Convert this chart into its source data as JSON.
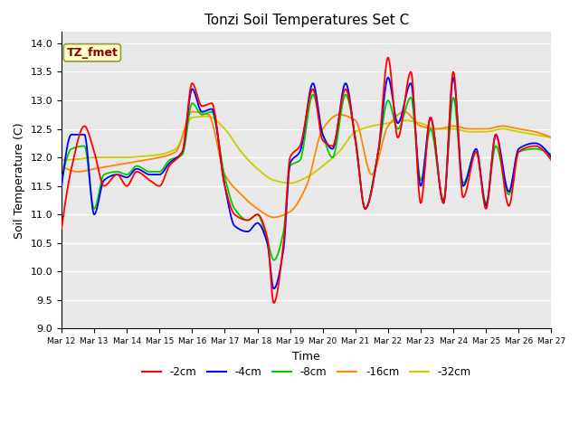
{
  "title": "Tonzi Soil Temperatures Set C",
  "xlabel": "Time",
  "ylabel": "Soil Temperature (C)",
  "ylim": [
    9.0,
    14.2
  ],
  "yticks": [
    9.0,
    9.5,
    10.0,
    10.5,
    11.0,
    11.5,
    12.0,
    12.5,
    13.0,
    13.5,
    14.0
  ],
  "bg_color": "#e8e8e8",
  "annotation_text": "TZ_fmet",
  "annotation_color": "#8b0000",
  "annotation_bg": "#ffffcc",
  "series_colors": {
    "-2cm": "#ff0000",
    "-4cm": "#0000ff",
    "-8cm": "#00cc00",
    "-16cm": "#ff8800",
    "-32cm": "#cccc00"
  },
  "x_tick_labels": [
    "Mar 12",
    "Mar 13",
    "Mar 14",
    "Mar 15",
    "Mar 16",
    "Mar 17",
    "Mar 18",
    "Mar 19",
    "Mar 20",
    "Mar 21",
    "Mar 22",
    "Mar 23",
    "Mar 24",
    "Mar 25",
    "Mar 26",
    "Mar 27"
  ],
  "days": 15
}
